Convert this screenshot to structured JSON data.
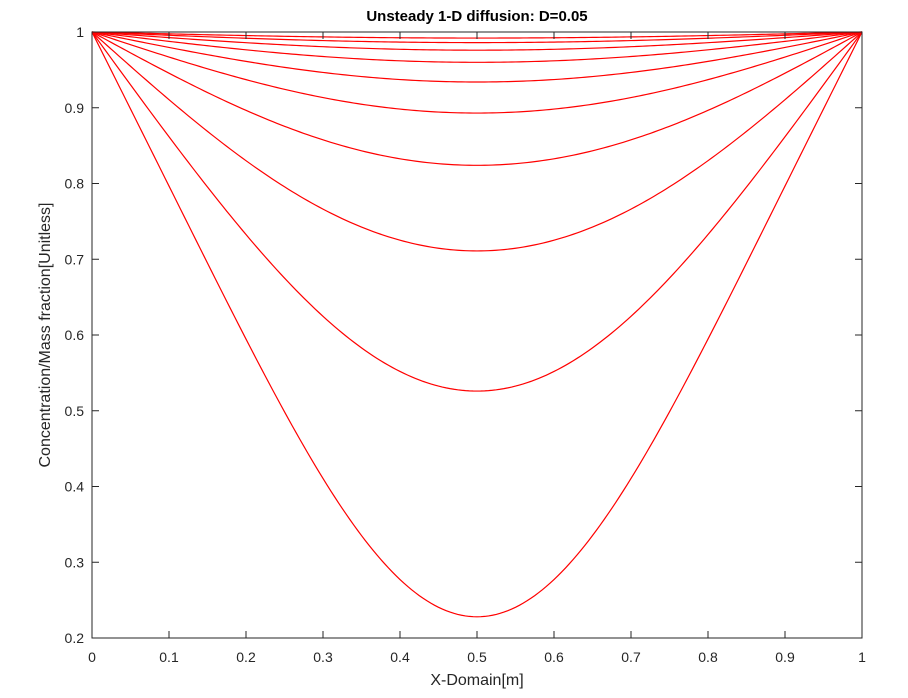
{
  "chart_data": {
    "type": "line",
    "title": "Unsteady 1-D diffusion: D=0.05",
    "xlabel": "X-Domain[m]",
    "ylabel": "Concentration/Mass fraction[Unitless]",
    "xlim": [
      0,
      1
    ],
    "ylim": [
      0.2,
      1
    ],
    "xticks": [
      "0",
      "0.1",
      "0.2",
      "0.3",
      "0.4",
      "0.5",
      "0.6",
      "0.7",
      "0.8",
      "0.9",
      "1"
    ],
    "yticks": [
      "0.2",
      "0.3",
      "0.4",
      "0.5",
      "0.6",
      "0.7",
      "0.8",
      "0.9",
      "1"
    ],
    "grid": false,
    "legend": "none",
    "line_color": "#ff0000",
    "series": [
      {
        "x": [
          0,
          0.5,
          1
        ],
        "y": [
          1,
          0.228,
          1
        ]
      },
      {
        "x": [
          0,
          0.5,
          1
        ],
        "y": [
          1,
          0.526,
          1
        ]
      },
      {
        "x": [
          0,
          0.5,
          1
        ],
        "y": [
          1,
          0.711,
          1
        ]
      },
      {
        "x": [
          0,
          0.5,
          1
        ],
        "y": [
          1,
          0.824,
          1
        ]
      },
      {
        "x": [
          0,
          0.5,
          1
        ],
        "y": [
          1,
          0.893,
          1
        ]
      },
      {
        "x": [
          0,
          0.5,
          1
        ],
        "y": [
          1,
          0.934,
          1
        ]
      },
      {
        "x": [
          0,
          0.5,
          1
        ],
        "y": [
          1,
          0.96,
          1
        ]
      },
      {
        "x": [
          0,
          0.5,
          1
        ],
        "y": [
          1,
          0.976,
          1
        ]
      },
      {
        "x": [
          0,
          0.5,
          1
        ],
        "y": [
          1,
          0.986,
          1
        ]
      },
      {
        "x": [
          0,
          0.5,
          1
        ],
        "y": [
          1,
          0.992,
          1
        ]
      }
    ]
  }
}
